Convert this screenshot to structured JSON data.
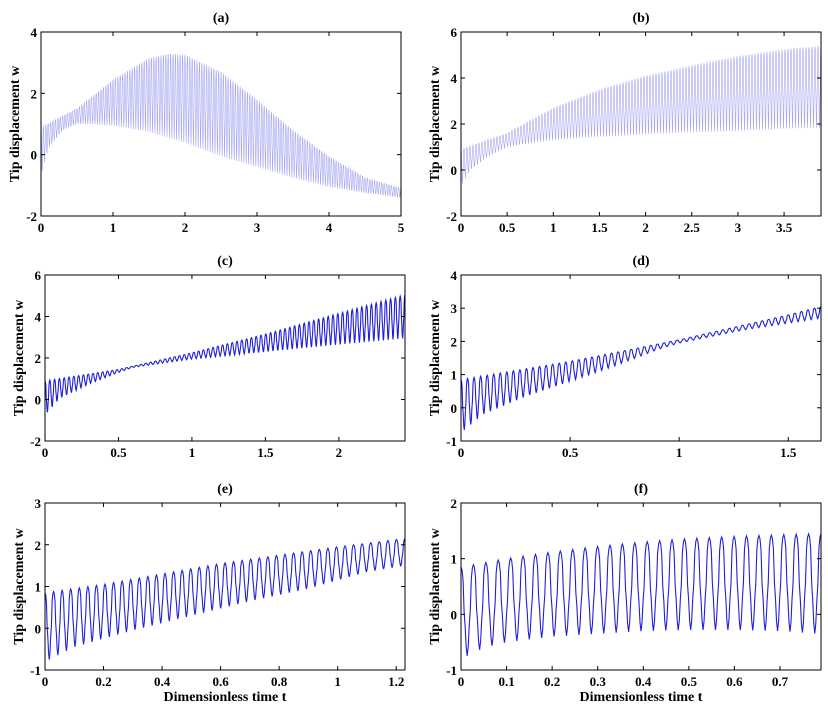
{
  "chart_data": [
    {
      "type": "line",
      "title": "(a)",
      "ylabel": "Tip displacement w",
      "xlabel": "",
      "xlim": [
        0,
        5
      ],
      "ylim": [
        -2,
        4
      ],
      "xticks": [
        0,
        1,
        2,
        3,
        4,
        5
      ],
      "yticks": [
        -2,
        0,
        2,
        4
      ],
      "color": "#a6a6f2",
      "grid": false,
      "cycles": 150,
      "start": 0.9,
      "first_min": -0.7,
      "upper_envelope": {
        "x": [
          0,
          0.5,
          1,
          1.5,
          1.8,
          2,
          2.5,
          3,
          3.5,
          4,
          4.5,
          5
        ],
        "y": [
          0.9,
          1.5,
          2.45,
          3.15,
          3.3,
          3.25,
          2.7,
          1.8,
          0.8,
          -0.05,
          -0.75,
          -1.1
        ]
      },
      "lower_envelope": {
        "x": [
          0,
          0.1,
          0.3,
          0.5,
          0.7,
          1,
          1.5,
          2,
          2.5,
          3,
          3.5,
          4,
          4.5,
          5
        ],
        "y": [
          -0.7,
          0.2,
          0.8,
          1.0,
          1.0,
          0.95,
          0.75,
          0.4,
          -0.05,
          -0.4,
          -0.75,
          -1.05,
          -1.25,
          -1.4
        ]
      }
    },
    {
      "type": "line",
      "title": "(b)",
      "ylabel": "Tip displacement w",
      "xlabel": "",
      "xlim": [
        0,
        3.9
      ],
      "ylim": [
        -2,
        6
      ],
      "xticks": [
        0,
        0.5,
        1,
        1.5,
        2,
        2.5,
        3,
        3.5
      ],
      "yticks": [
        -2,
        0,
        2,
        4,
        6
      ],
      "color": "#a6a6f2",
      "grid": false,
      "cycles": 120,
      "start": 0.85,
      "first_min": -0.7,
      "upper_envelope": {
        "x": [
          0,
          0.5,
          1,
          1.5,
          2,
          2.5,
          3,
          3.5,
          3.9
        ],
        "y": [
          0.9,
          1.6,
          2.7,
          3.5,
          4.1,
          4.55,
          4.95,
          5.25,
          5.4
        ]
      },
      "lower_envelope": {
        "x": [
          0,
          0.1,
          0.3,
          0.5,
          0.8,
          1,
          1.5,
          2,
          2.5,
          3,
          3.5,
          3.9
        ],
        "y": [
          -0.7,
          0.0,
          0.6,
          1.0,
          1.2,
          1.3,
          1.45,
          1.55,
          1.65,
          1.7,
          1.8,
          1.85
        ]
      }
    },
    {
      "type": "line",
      "title": "(c)",
      "ylabel": "Tip displacement w",
      "xlabel": "",
      "xlim": [
        0,
        2.45
      ],
      "ylim": [
        -2,
        6
      ],
      "xticks": [
        0,
        0.5,
        1,
        1.5,
        2
      ],
      "yticks": [
        -2,
        0,
        2,
        4,
        6
      ],
      "color": "#1f1fd9",
      "grid": false,
      "cycles": 75,
      "start": 0.85,
      "first_min": -0.75,
      "upper_envelope": {
        "x": [
          0,
          0.5,
          1,
          1.5,
          2,
          2.45
        ],
        "y": [
          0.9,
          1.45,
          2.25,
          3.15,
          4.15,
          5.05
        ]
      },
      "lower_envelope": {
        "x": [
          0,
          0.1,
          0.3,
          0.5,
          0.6,
          0.8,
          1,
          1.5,
          2,
          2.45
        ],
        "y": [
          -0.75,
          0.05,
          0.75,
          1.3,
          1.55,
          1.75,
          1.95,
          2.3,
          2.65,
          2.95
        ]
      }
    },
    {
      "type": "line",
      "title": "(d)",
      "ylabel": "Tip displacement w",
      "xlabel": "",
      "xlim": [
        0,
        1.65
      ],
      "ylim": [
        -1,
        4
      ],
      "xticks": [
        0,
        0.5,
        1,
        1.5
      ],
      "yticks": [
        -1,
        0,
        1,
        2,
        3,
        4
      ],
      "color": "#1f1fd9",
      "grid": false,
      "cycles": 55,
      "start": 0.85,
      "first_min": -0.75,
      "upper_envelope": {
        "x": [
          0,
          0.5,
          1,
          1.5,
          1.65
        ],
        "y": [
          0.85,
          1.4,
          2.05,
          2.8,
          3.05
        ]
      },
      "lower_envelope": {
        "x": [
          0,
          0.1,
          0.3,
          0.5,
          0.7,
          0.9,
          1,
          1.3,
          1.65
        ],
        "y": [
          -0.75,
          -0.2,
          0.35,
          0.8,
          1.25,
          1.75,
          1.95,
          2.35,
          2.7
        ]
      }
    },
    {
      "type": "line",
      "title": "(e)",
      "ylabel": "Tip displacement w",
      "xlabel": "Dimensionless time t",
      "xlim": [
        0,
        1.23
      ],
      "ylim": [
        -1,
        3
      ],
      "xticks": [
        0,
        0.2,
        0.4,
        0.6,
        0.8,
        1,
        1.2
      ],
      "yticks": [
        -1,
        0,
        1,
        2,
        3
      ],
      "color": "#1f1fd9",
      "grid": false,
      "cycles": 42,
      "start": 0.85,
      "first_min": -0.8,
      "upper_envelope": {
        "x": [
          0,
          0.2,
          0.4,
          0.6,
          0.8,
          1,
          1.23
        ],
        "y": [
          0.85,
          1.05,
          1.3,
          1.55,
          1.75,
          1.95,
          2.15
        ]
      },
      "lower_envelope": {
        "x": [
          0,
          0.1,
          0.3,
          0.5,
          0.7,
          0.9,
          1.1,
          1.23
        ],
        "y": [
          -0.8,
          -0.45,
          -0.05,
          0.3,
          0.65,
          0.95,
          1.35,
          1.5
        ]
      }
    },
    {
      "type": "line",
      "title": "(f)",
      "ylabel": "Tip displacement w",
      "xlabel": "Dimensionless time t",
      "xlim": [
        0,
        0.79
      ],
      "ylim": [
        -1,
        2
      ],
      "xticks": [
        0,
        0.1,
        0.2,
        0.3,
        0.4,
        0.5,
        0.6,
        0.7
      ],
      "yticks": [
        -1,
        0,
        1,
        2
      ],
      "color": "#1f1fd9",
      "grid": false,
      "cycles": 29,
      "start": 0.85,
      "first_min": -0.8,
      "upper_envelope": {
        "x": [
          0,
          0.1,
          0.2,
          0.3,
          0.4,
          0.5,
          0.6,
          0.7,
          0.79
        ],
        "y": [
          0.85,
          1.0,
          1.12,
          1.22,
          1.3,
          1.36,
          1.4,
          1.43,
          1.45
        ]
      },
      "lower_envelope": {
        "x": [
          0,
          0.05,
          0.1,
          0.2,
          0.3,
          0.4,
          0.5,
          0.6,
          0.7,
          0.79
        ],
        "y": [
          -0.8,
          -0.6,
          -0.5,
          -0.4,
          -0.35,
          -0.3,
          -0.28,
          -0.28,
          -0.3,
          -0.35
        ]
      }
    }
  ]
}
